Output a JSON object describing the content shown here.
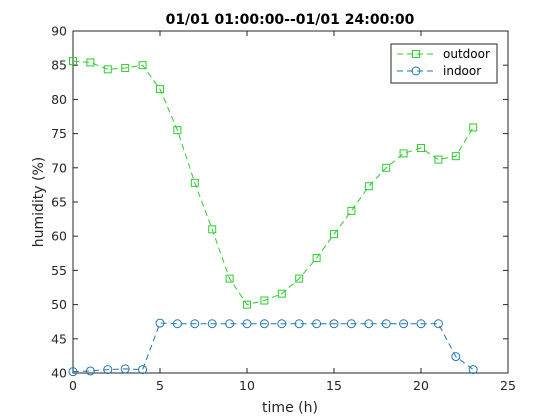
{
  "chart_data": {
    "type": "line",
    "title": "01/01  01:00:00--01/01  24:00:00",
    "xlabel": "time (h)",
    "ylabel": "humidity (%)",
    "xlim": [
      0,
      25
    ],
    "ylim": [
      40,
      90
    ],
    "xticks": [
      0,
      5,
      10,
      15,
      20,
      25
    ],
    "yticks": [
      40,
      45,
      50,
      55,
      60,
      65,
      70,
      75,
      80,
      85,
      90
    ],
    "grid": false,
    "legend_position": "top-right",
    "series": [
      {
        "name": "outdoor",
        "color": "#2ecc2e",
        "marker": "square",
        "linestyle": "dashed",
        "x": [
          0,
          1,
          2,
          3,
          4,
          5,
          6,
          7,
          8,
          9,
          10,
          11,
          12,
          13,
          14,
          15,
          16,
          17,
          18,
          19,
          20,
          21,
          22,
          23
        ],
        "y": [
          85.6,
          85.4,
          84.4,
          84.6,
          85.0,
          81.5,
          75.5,
          67.8,
          61.0,
          53.8,
          50.0,
          50.6,
          51.6,
          53.8,
          56.8,
          60.3,
          63.7,
          67.3,
          70.0,
          72.1,
          72.9,
          71.2,
          71.7,
          75.9
        ]
      },
      {
        "name": "indoor",
        "color": "#1f77b4",
        "marker": "circle",
        "linestyle": "dashed",
        "x": [
          0,
          1,
          2,
          3,
          4,
          5,
          6,
          7,
          8,
          9,
          10,
          11,
          12,
          13,
          14,
          15,
          16,
          17,
          18,
          19,
          20,
          21,
          22,
          23
        ],
        "y": [
          40.2,
          40.3,
          40.5,
          40.6,
          40.5,
          47.3,
          47.2,
          47.2,
          47.2,
          47.2,
          47.2,
          47.2,
          47.2,
          47.2,
          47.2,
          47.2,
          47.2,
          47.2,
          47.2,
          47.2,
          47.2,
          47.2,
          42.4,
          40.5
        ]
      }
    ]
  }
}
